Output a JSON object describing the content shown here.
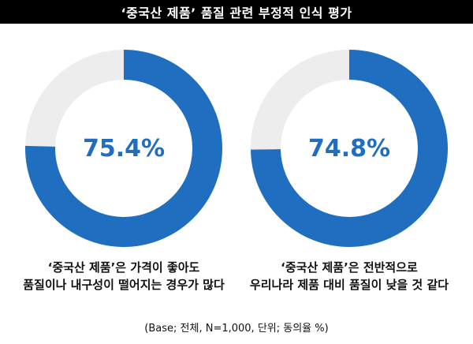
{
  "title": "‘중국산 제품’ 품질 관련 부정적 인식 평가",
  "note": "(Base; 전체, N=1,000, 단위; 동의율 %)",
  "colors": {
    "filled": "#1f6ebf",
    "remainder": "#ededed"
  },
  "chart_data": [
    {
      "type": "pie",
      "values": [
        75.4,
        24.6
      ],
      "label": "75.4%",
      "caption": [
        "‘중국산 제품’은 가격이 좋아도",
        "품질이나 내구성이 떨어지는 경우가 많다"
      ]
    },
    {
      "type": "pie",
      "values": [
        74.8,
        25.2
      ],
      "label": "74.8%",
      "caption": [
        "‘중국산 제품’은 전반적으로",
        "우리나라 제품 대비 품질이 낮을 것 같다"
      ]
    }
  ]
}
